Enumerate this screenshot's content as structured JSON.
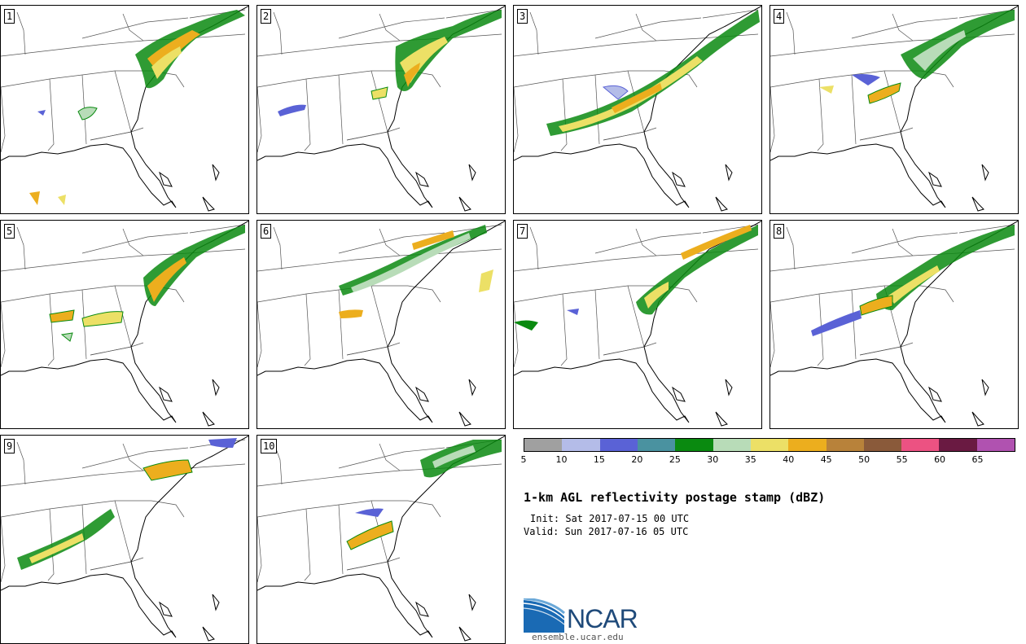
{
  "panels": [
    {
      "label": "1"
    },
    {
      "label": "2"
    },
    {
      "label": "3"
    },
    {
      "label": "4"
    },
    {
      "label": "5"
    },
    {
      "label": "6"
    },
    {
      "label": "7"
    },
    {
      "label": "8"
    },
    {
      "label": "9"
    },
    {
      "label": "10"
    }
  ],
  "colorbar": {
    "colors": [
      "#a0a0a0",
      "#b4bce8",
      "#5a62d6",
      "#4a92a0",
      "#0a8a10",
      "#b8dcb8",
      "#ece066",
      "#ecae1e",
      "#b8823a",
      "#8a5a3a",
      "#ec5282",
      "#6a1a42",
      "#b052b0"
    ],
    "ticks": [
      "5",
      "10",
      "15",
      "20",
      "25",
      "30",
      "35",
      "40",
      "45",
      "50",
      "55",
      "60",
      "65"
    ]
  },
  "title": "1-km AGL reflectivity postage stamp (dBZ)",
  "init": "Init: Sat 2017-07-15 00 UTC",
  "valid": "Valid: Sun 2017-07-16 05 UTC",
  "logo": {
    "name": "NCAR",
    "url": "ensemble.ucar.edu"
  }
}
